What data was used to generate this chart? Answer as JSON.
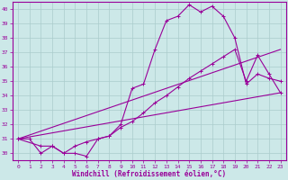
{
  "xlabel": "Windchill (Refroidissement éolien,°C)",
  "bg_color": "#cce8e8",
  "line_color": "#990099",
  "grid_color": "#aacccc",
  "xlim_min": -0.5,
  "xlim_max": 23.5,
  "ylim_min": 29.5,
  "ylim_max": 40.5,
  "yticks": [
    30,
    31,
    32,
    33,
    34,
    35,
    36,
    37,
    38,
    39,
    40
  ],
  "xticks": [
    0,
    1,
    2,
    3,
    4,
    5,
    6,
    7,
    8,
    9,
    10,
    11,
    12,
    13,
    14,
    15,
    16,
    17,
    18,
    19,
    20,
    21,
    22,
    23
  ],
  "curve1_x": [
    0,
    1,
    2,
    3,
    4,
    5,
    6,
    7,
    8,
    9,
    10,
    11,
    12,
    13,
    14,
    15,
    16,
    17,
    18,
    19,
    20,
    21,
    22,
    23
  ],
  "curve1_y": [
    31,
    31,
    30,
    30.5,
    30,
    30,
    29.8,
    31,
    31.2,
    32,
    34.5,
    34.8,
    37.2,
    39.2,
    39.5,
    40.3,
    39.8,
    40.2,
    39.5,
    38.0,
    34.8,
    35.5,
    35.2,
    35.0
  ],
  "curve2_x": [
    0,
    2,
    3,
    4,
    5,
    6,
    7,
    8,
    9,
    10,
    11,
    12,
    13,
    14,
    15,
    16,
    17,
    18,
    19,
    20,
    21,
    22,
    23
  ],
  "curve2_y": [
    31,
    30.5,
    30.5,
    30,
    30.5,
    30.8,
    31.0,
    31.2,
    31.8,
    32.2,
    32.8,
    33.5,
    34.0,
    34.6,
    35.2,
    35.7,
    36.2,
    36.7,
    37.2,
    35.0,
    36.8,
    35.5,
    34.2
  ],
  "line3_x": [
    0,
    23
  ],
  "line3_y": [
    31,
    37.2
  ],
  "line4_x": [
    0,
    23
  ],
  "line4_y": [
    31,
    34.2
  ],
  "lw": 0.8,
  "ms": 2.0,
  "tick_fontsize": 4.5,
  "xlabel_fontsize": 5.5
}
